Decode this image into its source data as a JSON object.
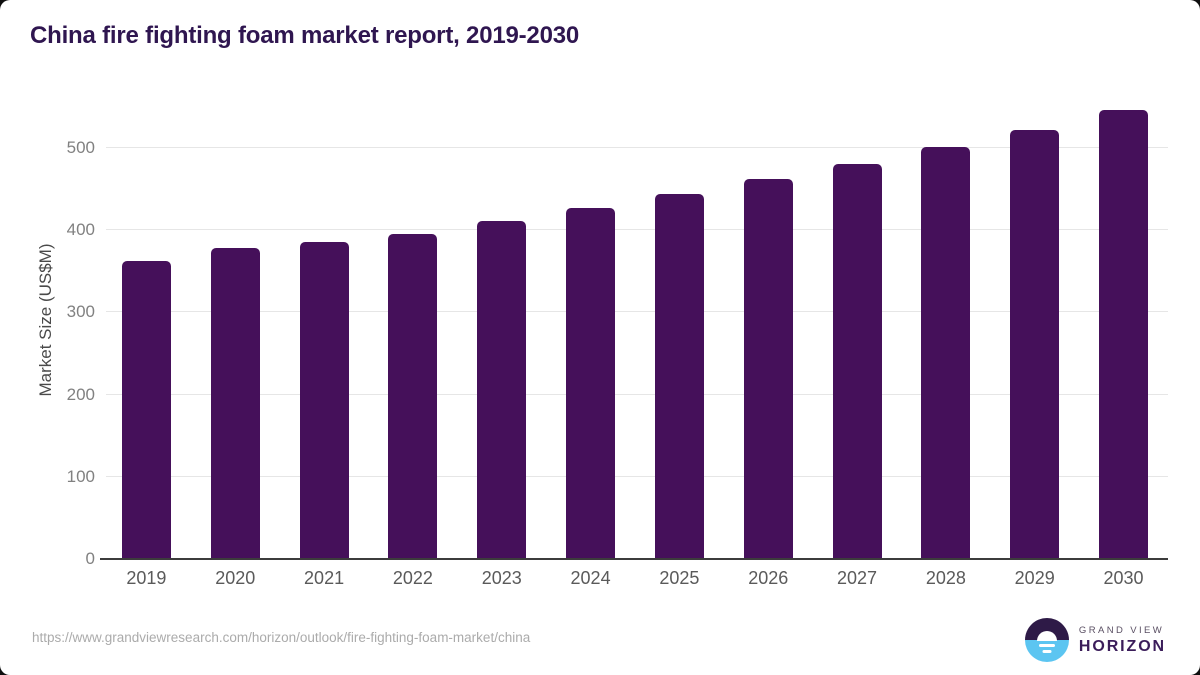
{
  "page": {
    "title": "China fire fighting foam market report, 2019-2030"
  },
  "chart_data": {
    "type": "bar",
    "title": "China fire fighting foam market report, 2019-2030",
    "categories": [
      "2019",
      "2020",
      "2021",
      "2022",
      "2023",
      "2024",
      "2025",
      "2026",
      "2027",
      "2028",
      "2029",
      "2030"
    ],
    "values": [
      362,
      378,
      386,
      396,
      411,
      427,
      444,
      462,
      480,
      501,
      522,
      546
    ],
    "xlabel": "",
    "ylabel": "Market Size (US$M)",
    "ylim": [
      0,
      560
    ],
    "yticks": [
      0,
      100,
      200,
      300,
      400,
      500
    ],
    "grid": true,
    "legend": "none",
    "bar_color": "#45105a"
  },
  "footer": {
    "source_url": "https://www.grandviewresearch.com/horizon/outlook/fire-fighting-foam-market/china",
    "logo": {
      "line1": "GRAND VIEW",
      "line2": "HORIZON"
    }
  },
  "colors": {
    "title_text": "#2f1650",
    "bar_fill": "#45105a",
    "gridline": "#e6e6e6",
    "axis_line": "#3c3c3c",
    "tick_label": "#818181",
    "x_label": "#5a5a5a",
    "source_text": "#ababab",
    "logo_purple": "#2e1a47",
    "logo_blue": "#5cc5f1",
    "logo_wordmark": "#3b1d5a",
    "background": "#ffffff"
  }
}
